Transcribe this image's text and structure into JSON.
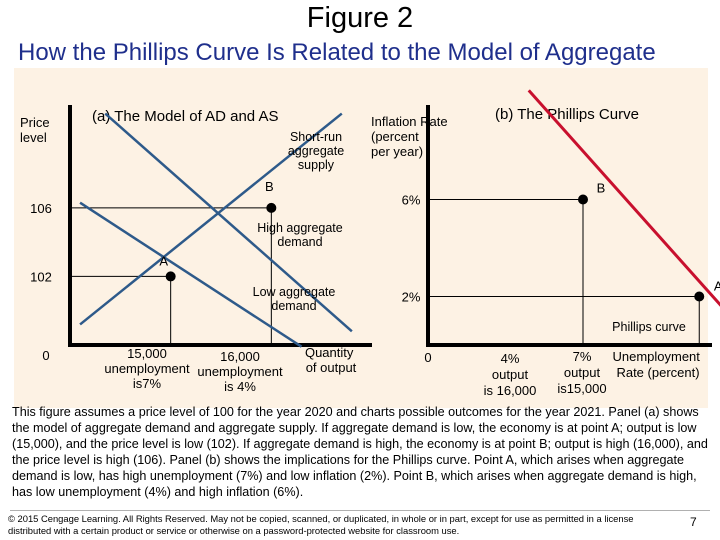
{
  "slide": {
    "title": "Figure 2",
    "subtitle": "How the Phillips Curve Is Related to the Model of Aggregate Demand and Aggregate Supply",
    "caption": "This figure assumes a price level of 100 for the year 2020 and charts possible outcomes for the year 2021. Panel (a) shows the model of aggregate demand and aggregate supply. If aggregate demand is low, the economy is at point A; output is low (15,000), and the price level is low (102). If aggregate demand is high, the economy is at point B; output is high (16,000), and the price level is high (106). Panel (b) shows the implications for the Phillips curve. Point A, which arises when aggregate demand is low, has high unemployment (7%) and low inflation (2%). Point B, which arises when aggregate demand is high, has low unemployment (4%) and high inflation (6%).",
    "copyright": "© 2015 Cengage Learning. All Rights Reserved. May not be copied, scanned, or duplicated, in whole or in part, except for use as permitted in a license distributed with a certain product or service or otherwise on a password-protected website for classroom use.",
    "page_number": "7"
  },
  "colors": {
    "subtitle": "#1f2f8c",
    "panel_background": "#fdf2e4",
    "curve_blue": "#2e5a8a",
    "phillips_red": "#c8102e",
    "guide_line": "#000000"
  },
  "chart_data": [
    {
      "type": "line",
      "title": "(a) The Model of AD and AS",
      "ylabel": "Price level",
      "xlabel": "Quantity of output",
      "origin_label": "0",
      "xlim": [
        14000,
        17000
      ],
      "ylim": [
        98,
        112
      ],
      "y_ticks": [
        {
          "value": 102,
          "label": "102"
        },
        {
          "value": 106,
          "label": "106"
        }
      ],
      "x_ticks": [
        {
          "value": 15000,
          "lines": [
            "15,000",
            "unemployment",
            "is7%"
          ]
        },
        {
          "value": 16000,
          "lines": [
            "16,000",
            "unemployment",
            "is 4%"
          ]
        }
      ],
      "series": [
        {
          "name": "Short-run aggregate supply",
          "label_lines": [
            "Short-run",
            "aggregate",
            "supply"
          ],
          "x": [
            14100,
            16700
          ],
          "y": [
            99.2,
            111.5
          ]
        },
        {
          "name": "High aggregate demand",
          "label_lines": [
            "High aggregate",
            "demand"
          ],
          "x": [
            14350,
            16800
          ],
          "y": [
            111.5,
            98.8
          ]
        },
        {
          "name": "Low aggregate demand",
          "label_lines": [
            "Low aggregate",
            "demand"
          ],
          "x": [
            14100,
            16300
          ],
          "y": [
            106.3,
            97.9
          ]
        }
      ],
      "points": [
        {
          "label": "A",
          "x": 15000,
          "y": 102
        },
        {
          "label": "B",
          "x": 16000,
          "y": 106
        }
      ]
    },
    {
      "type": "line",
      "title": "(b) The Phillips Curve",
      "ylabel": "Inflation Rate (percent per year)",
      "ylabel_lines": [
        "Inflation Rate",
        "(percent",
        "per year)"
      ],
      "xlabel": "Unemployment Rate (percent)",
      "xlabel_lines": [
        "Unemployment",
        "Rate (percent)"
      ],
      "origin_label": "0",
      "xlim": [
        0,
        10
      ],
      "ylim": [
        0,
        10
      ],
      "y_ticks": [
        {
          "value": 2,
          "label": "2%"
        },
        {
          "value": 6,
          "label": "6%"
        }
      ],
      "x_ticks": [
        {
          "value": 4,
          "lines": [
            "4%",
            "output",
            "is 16,000"
          ]
        },
        {
          "value": 7,
          "lines": [
            "7%",
            "output",
            "is15,000"
          ]
        }
      ],
      "series": [
        {
          "name": "Phillips curve",
          "label_lines": [
            "Phillips curve"
          ],
          "x": [
            2.6,
            8.3
          ],
          "y": [
            10.5,
            0.3
          ]
        }
      ],
      "points": [
        {
          "label": "A",
          "x": 7,
          "y": 2
        },
        {
          "label": "B",
          "x": 4,
          "y": 6
        }
      ]
    }
  ]
}
